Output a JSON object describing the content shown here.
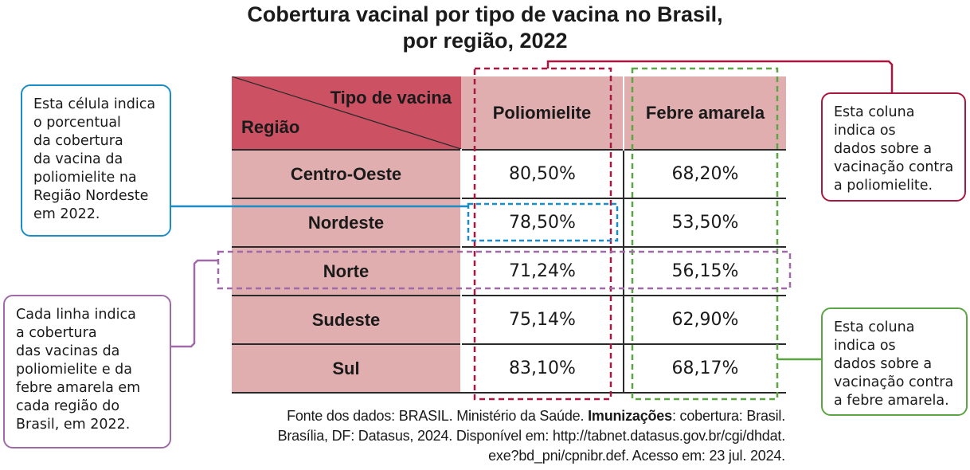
{
  "title": {
    "line1": "Cobertura vacinal por tipo de vacina no Brasil,",
    "line2": "por região, 2022"
  },
  "table": {
    "corner_top": "Tipo de vacina",
    "corner_bottom": "Região",
    "columns": [
      "Poliomielite",
      "Febre amarela"
    ],
    "rows": [
      {
        "region": "Centro-Oeste",
        "polio": "80,50%",
        "febre": "68,20%"
      },
      {
        "region": "Nordeste",
        "polio": "78,50%",
        "febre": "53,50%"
      },
      {
        "region": "Norte",
        "polio": "71,24%",
        "febre": "56,15%"
      },
      {
        "region": "Sudeste",
        "polio": "75,14%",
        "febre": "62,90%"
      },
      {
        "region": "Sul",
        "polio": "83,10%",
        "febre": "68,17%"
      }
    ]
  },
  "callouts": {
    "cell": [
      "Esta célula indica",
      "o porcentual",
      "da cobertura",
      "da vacina da",
      "poliomielite na",
      "Região Nordeste",
      "em 2022."
    ],
    "row": [
      "Cada linha indica",
      "a cobertura",
      "das vacinas da",
      "poliomielite e da",
      "febre amarela em",
      "cada região do",
      "Brasil, em 2022."
    ],
    "polio_column": [
      "Esta coluna",
      "indica os",
      "dados sobre a",
      "vacinação contra",
      "a poliomielite."
    ],
    "febre_column": [
      "Esta coluna",
      "indica os",
      "dados sobre a",
      "vacinação contra",
      "a febre amarela."
    ]
  },
  "source": {
    "prefix": "Fonte dos dados: BRASIL. Ministério da Saúde. ",
    "bold": "Imunizações",
    "suffix": ": cobertura: Brasil.",
    "line2": "Brasília, DF: Datasus, 2024. Disponível em: http://tabnet.datasus.gov.br/cgi/dhdat.",
    "line3": "exe?bd_pni/cpnibr.def. Acesso em: 23 jul. 2024."
  },
  "colors": {
    "corner": "#cc5163",
    "header_fill": "#e1aeb0",
    "blue": "#1b8dc6",
    "purple": "#a06aa8",
    "red": "#a8173f",
    "green": "#5ca545"
  }
}
